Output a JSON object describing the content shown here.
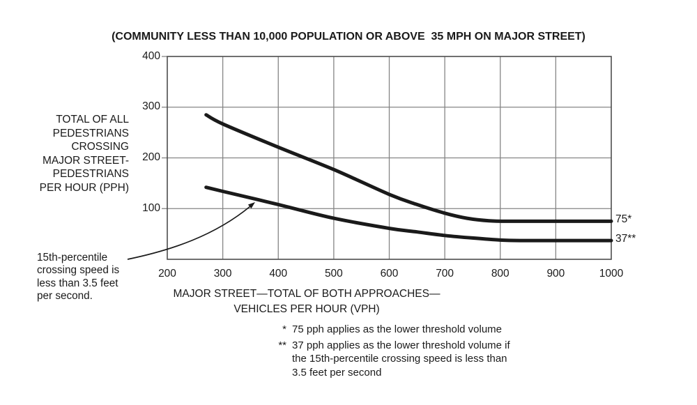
{
  "title": "(COMMUNITY LESS THAN 10,000 POPULATION OR ABOVE  35 MPH ON MAJOR STREET)",
  "y_axis": {
    "label_lines": [
      "TOTAL OF ALL",
      "PEDESTRIANS",
      "CROSSING",
      "MAJOR STREET-",
      "PEDESTRIANS",
      "PER HOUR (PPH)"
    ],
    "ticks": [
      "400",
      "300",
      "200",
      "100"
    ]
  },
  "x_axis": {
    "ticks": [
      "200",
      "300",
      "400",
      "500",
      "600",
      "700",
      "800",
      "900",
      "1000"
    ],
    "title_line1": "MAJOR STREET—TOTAL OF BOTH APPROACHES—",
    "title_line2": "VEHICLES PER HOUR (VPH)"
  },
  "curve_labels": {
    "upper": "75*",
    "lower": "37**"
  },
  "annotation": {
    "lines": [
      "15th-percentile",
      "crossing speed is",
      "less than 3.5 feet",
      "per second."
    ]
  },
  "footnotes": [
    {
      "marker": "*",
      "lines": [
        "75 pph applies as the lower threshold volume"
      ]
    },
    {
      "marker": "**",
      "lines": [
        "37 pph applies as the lower threshold volume if",
        "the 15th-percentile crossing speed is less than",
        "3.5 feet per second"
      ]
    }
  ],
  "colors": {
    "text": "#1a1a1a",
    "curve": "#1a1a1a",
    "grid": "#858585",
    "border": "#4d4d4d",
    "arrow": "#1a1a1a",
    "background": "#ffffff"
  },
  "chart_data": {
    "type": "line",
    "title": "(COMMUNITY LESS THAN 10,000 POPULATION OR ABOVE 35 MPH ON MAJOR STREET)",
    "xlabel": "MAJOR STREET—TOTAL OF BOTH APPROACHES—VEHICLES PER HOUR (VPH)",
    "ylabel": "TOTAL OF ALL PEDESTRIANS CROSSING MAJOR STREET-PEDESTRIANS PER HOUR (PPH)",
    "xlim": [
      200,
      1000
    ],
    "ylim": [
      0,
      400
    ],
    "x_ticks": [
      200,
      300,
      400,
      500,
      600,
      700,
      800,
      900,
      1000
    ],
    "y_ticks": [
      0,
      100,
      200,
      300,
      400
    ],
    "grid": true,
    "legend_position": "right-of-curves",
    "series": [
      {
        "name": "75*",
        "lower_threshold": 75,
        "points": [
          [
            270,
            285
          ],
          [
            300,
            267
          ],
          [
            400,
            221
          ],
          [
            500,
            177
          ],
          [
            600,
            128
          ],
          [
            650,
            108
          ],
          [
            700,
            91
          ],
          [
            740,
            81
          ],
          [
            780,
            76
          ],
          [
            820,
            75
          ],
          [
            900,
            75
          ],
          [
            1000,
            75
          ]
        ]
      },
      {
        "name": "37**",
        "lower_threshold": 37,
        "points": [
          [
            270,
            142
          ],
          [
            300,
            134
          ],
          [
            400,
            108
          ],
          [
            500,
            81
          ],
          [
            600,
            61
          ],
          [
            650,
            54
          ],
          [
            700,
            47
          ],
          [
            750,
            42
          ],
          [
            800,
            38
          ],
          [
            840,
            37
          ],
          [
            900,
            37
          ],
          [
            1000,
            37
          ]
        ]
      }
    ],
    "annotation": {
      "text": "15th-percentile crossing speed is less than 3.5 feet per second.",
      "points_to_xy": [
        360,
        112
      ]
    }
  }
}
